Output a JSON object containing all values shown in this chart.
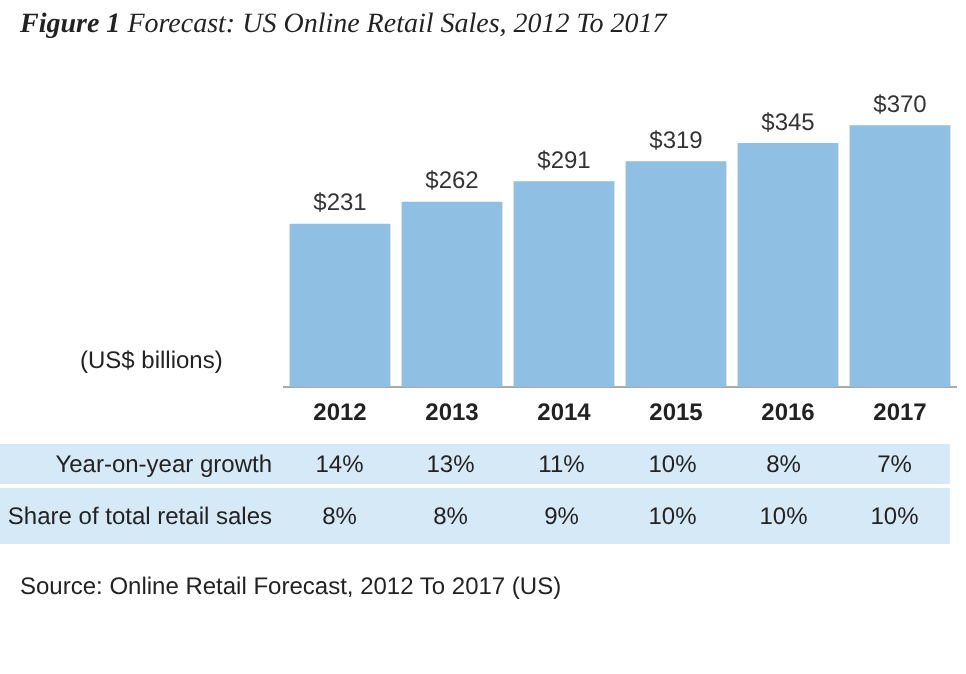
{
  "chart_data": {
    "type": "bar",
    "title": "Figure 1 Forecast: US Online Retail Sales, 2012 To 2017",
    "ylabel": "(US$ billions)",
    "categories": [
      "2012",
      "2013",
      "2014",
      "2015",
      "2016",
      "2017"
    ],
    "values": [
      231,
      262,
      291,
      319,
      345,
      370
    ],
    "color": "#8fc0e4",
    "value_labels": [
      "$231",
      "$262",
      "$291",
      "$319",
      "$345",
      "$370"
    ],
    "tick_labels": "x",
    "grid": false,
    "legend": false,
    "annotations": [
      "Year-on-year growth",
      "14%",
      "13%",
      "11%",
      "10%",
      "8%",
      "7%",
      "Share of total retail sales",
      "8%",
      "8%",
      "9%",
      "10%",
      "10%",
      "10%",
      "Source: Online Retail Forecast, 2012 To 2017 (US)"
    ]
  }
}
